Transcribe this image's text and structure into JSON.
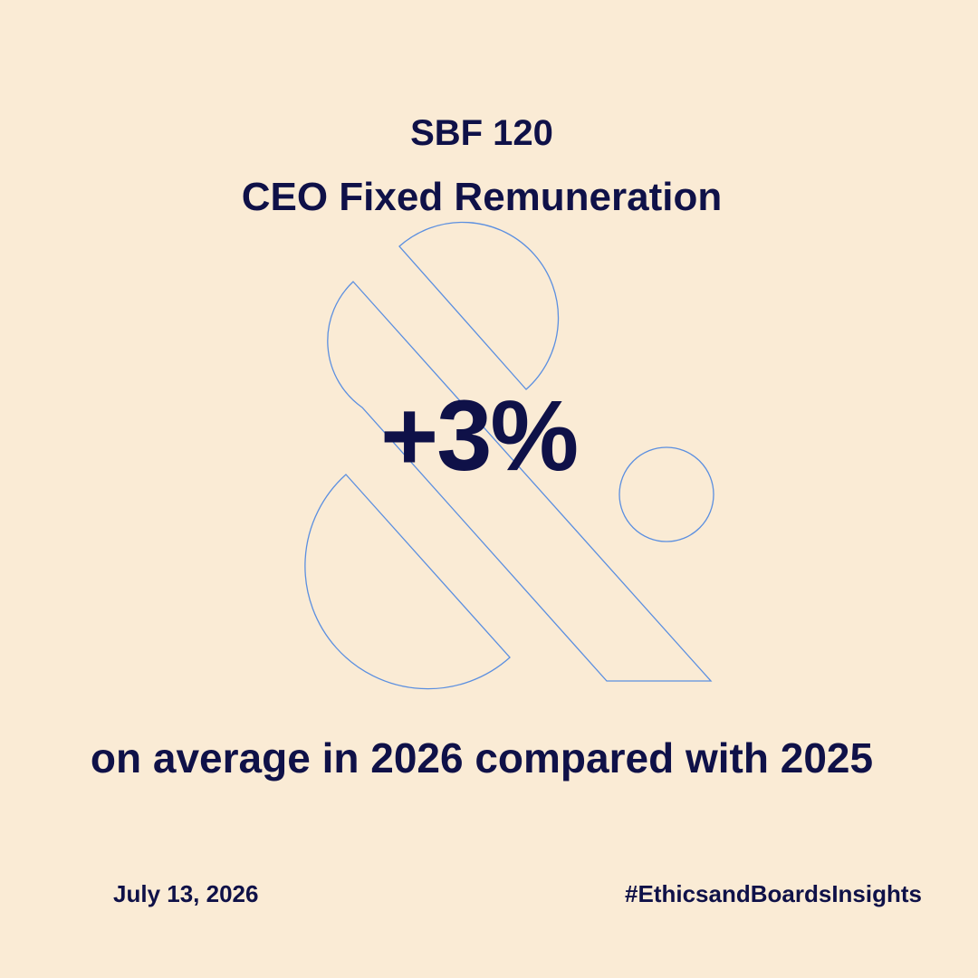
{
  "header": {
    "title_line1": "SBF 120",
    "title_line2": "CEO Fixed Remuneration"
  },
  "main": {
    "figure": "+3%",
    "caption": "on average in 2026 compared with 2025"
  },
  "footer": {
    "date": "July 13, 2026",
    "hashtag": "#EthicsandBoardsInsights"
  }
}
